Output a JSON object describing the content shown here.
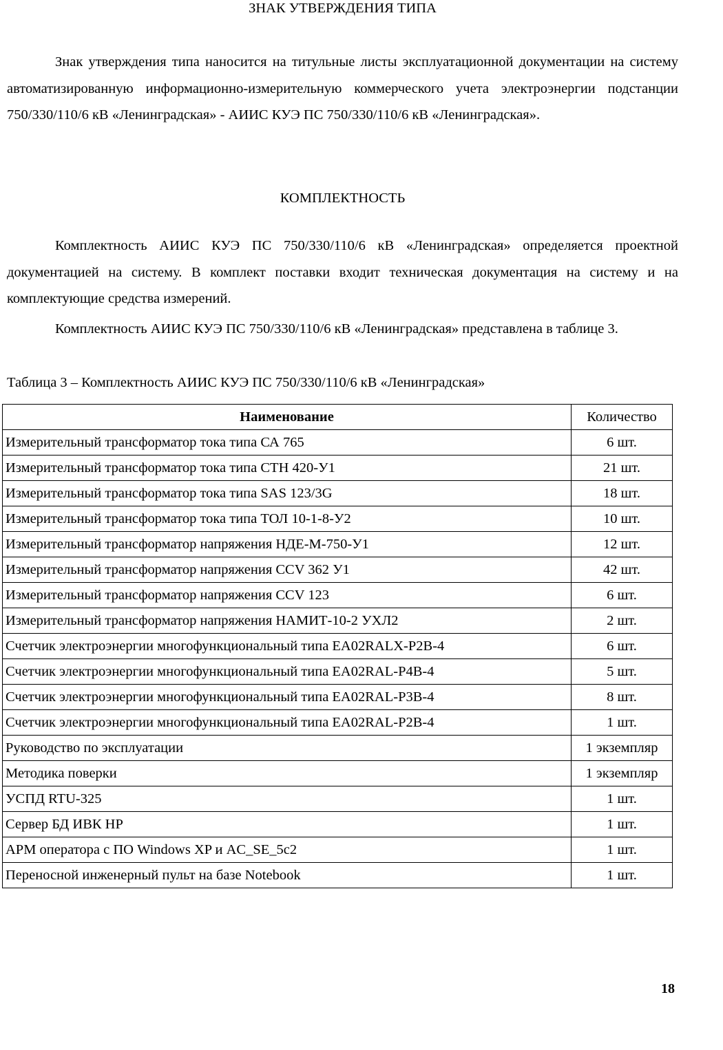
{
  "section_title": "ЗНАК УТВЕРЖДЕНИЯ ТИПА",
  "section_text": "Знак утверждения типа наносится на титульные листы эксплуатационной документации на систему автоматизированную информационно-измерительную коммерческого учета электроэнергии подстанции 750/330/110/6 кВ «Ленинградская» - АИИС КУЭ ПС 750/330/110/6 кВ «Ленинградская».",
  "completeness_title": "КОМПЛЕКТНОСТЬ",
  "completeness_text_1": "Комплектность АИИС КУЭ ПС 750/330/110/6 кВ «Ленинградская» определяется проектной документацией на систему. В комплект поставки входит техническая документация на систему и на комплектующие средства измерений.",
  "completeness_text_2": "Комплектность АИИС КУЭ ПС 750/330/110/6 кВ «Ленинградская» представлена в таблице 3.",
  "table_caption": "Таблица 3 – Комплектность АИИС КУЭ ПС 750/330/110/6 кВ «Ленинградская»",
  "table": {
    "headers": [
      "Наименование",
      "Количество"
    ],
    "rows": [
      [
        "Измерительный трансформатор тока типа СА 765",
        "6 шт."
      ],
      [
        "Измерительный трансформатор тока типа СТН 420-У1",
        "21 шт."
      ],
      [
        "Измерительный трансформатор тока типа SAS 123/3G",
        "18 шт."
      ],
      [
        "Измерительный трансформатор тока типа ТОЛ 10-1-8-У2",
        "10 шт."
      ],
      [
        "Измерительный трансформатор напряжения НДЕ-М-750-У1",
        "12 шт."
      ],
      [
        "Измерительный трансформатор напряжения CCV 362 У1",
        "42 шт."
      ],
      [
        "Измерительный трансформатор напряжения CCV 123",
        "6 шт."
      ],
      [
        "Измерительный трансформатор напряжения НАМИТ-10-2 УХЛ2",
        "2 шт."
      ],
      [
        "Счетчик электроэнергии многофункциональный типа EA02RALX-P2B-4",
        "6 шт."
      ],
      [
        "Счетчик электроэнергии многофункциональный типа EA02RAL-P4B-4",
        "5 шт."
      ],
      [
        "Счетчик электроэнергии многофункциональный типа EA02RAL-P3B-4",
        "8 шт."
      ],
      [
        "Счетчик электроэнергии многофункциональный типа EA02RAL-P2B-4",
        "1 шт."
      ],
      [
        "Руководство по эксплуатации",
        "1 экземпляр"
      ],
      [
        "Методика поверки",
        "1 экземпляр"
      ],
      [
        "УСПД RTU-325",
        "1 шт."
      ],
      [
        "Сервер БД ИВК HP",
        "1 шт."
      ],
      [
        "АРМ оператора  с ПО Windows XP и AC_SE_5c2",
        "1 шт."
      ],
      [
        "Переносной инженерный пульт на базе Notebook",
        "1 шт."
      ]
    ]
  },
  "page_number": "18"
}
